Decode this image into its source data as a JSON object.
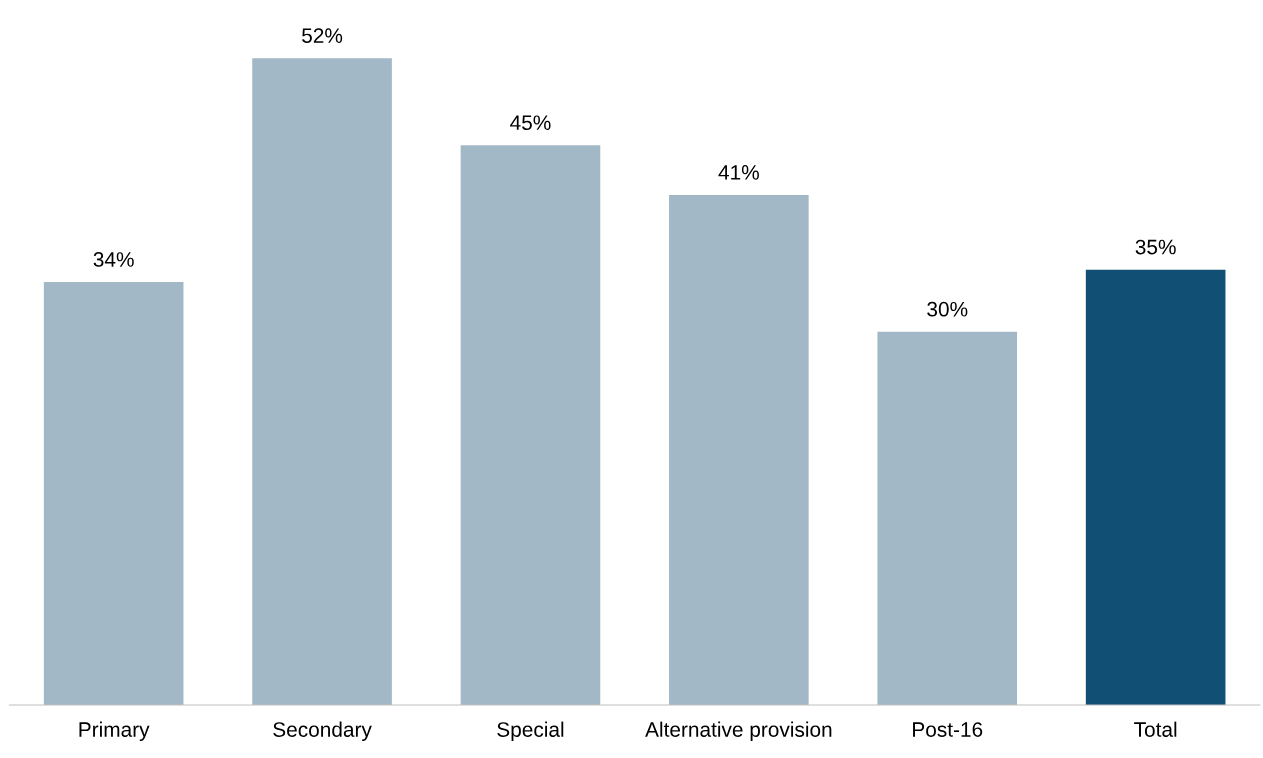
{
  "chart_data": {
    "type": "bar",
    "categories": [
      "Primary",
      "Secondary",
      "Special",
      "Alternative provision",
      "Post-16",
      "Total"
    ],
    "values": [
      34,
      52,
      45,
      41,
      30,
      35
    ],
    "colors": [
      "#a3b8c7",
      "#a3b8c7",
      "#a3b8c7",
      "#a3b8c7",
      "#a3b8c7",
      "#114f74"
    ],
    "value_labels": [
      "34%",
      "52%",
      "45%",
      "41%",
      "30%",
      "35%"
    ],
    "tick_labels": "x",
    "grid": false,
    "legend": false
  }
}
